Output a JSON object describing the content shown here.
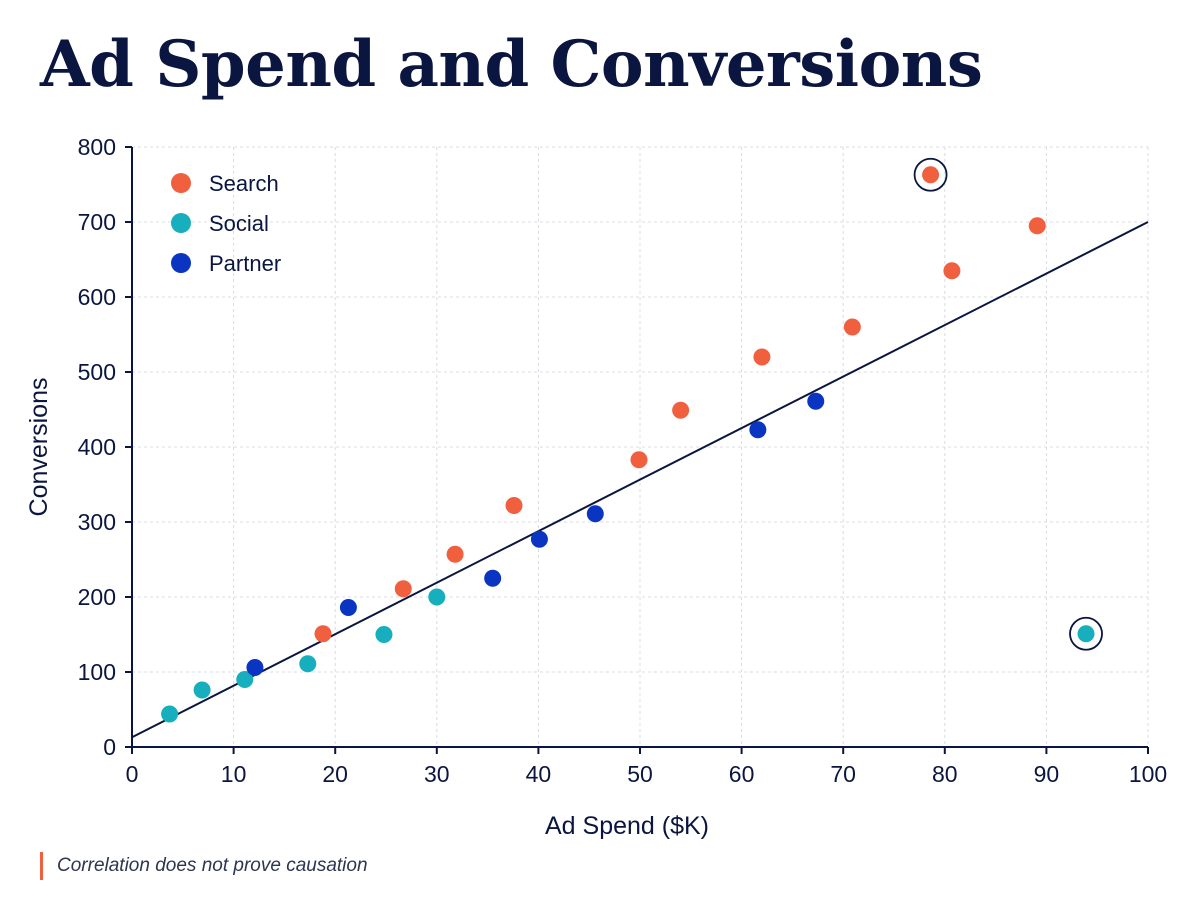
{
  "title": "Ad Spend and Conversions",
  "note": "Correlation does not prove causation",
  "colors": {
    "title": "#0b1640",
    "axis": "#0b1640",
    "trend": "#0b1640",
    "accent": "#f0603f"
  },
  "chart_data": {
    "type": "scatter",
    "xlabel": "Ad Spend ($K)",
    "ylabel": "Conversions",
    "xlim": [
      0,
      100
    ],
    "ylim": [
      0,
      800
    ],
    "xticks": [
      0,
      10,
      20,
      30,
      40,
      50,
      60,
      70,
      80,
      90,
      100
    ],
    "yticks": [
      0,
      100,
      200,
      300,
      400,
      500,
      600,
      700,
      800
    ],
    "grid": true,
    "legend_position": "top-left",
    "trendline": {
      "from": [
        0,
        13
      ],
      "to": [
        100,
        700
      ]
    },
    "series": [
      {
        "name": "Search",
        "color": "#f0603f",
        "points": [
          {
            "x": 18.8,
            "y": 151
          },
          {
            "x": 26.7,
            "y": 211
          },
          {
            "x": 31.8,
            "y": 257
          },
          {
            "x": 37.6,
            "y": 322
          },
          {
            "x": 49.9,
            "y": 383
          },
          {
            "x": 54.0,
            "y": 449
          },
          {
            "x": 62.0,
            "y": 520
          },
          {
            "x": 70.9,
            "y": 560
          },
          {
            "x": 78.6,
            "y": 763,
            "highlighted": true
          },
          {
            "x": 80.7,
            "y": 635
          },
          {
            "x": 89.1,
            "y": 695
          }
        ]
      },
      {
        "name": "Social",
        "color": "#17aebd",
        "points": [
          {
            "x": 3.7,
            "y": 44
          },
          {
            "x": 6.9,
            "y": 76
          },
          {
            "x": 11.1,
            "y": 90
          },
          {
            "x": 17.3,
            "y": 111
          },
          {
            "x": 24.8,
            "y": 150
          },
          {
            "x": 30.0,
            "y": 200
          },
          {
            "x": 93.9,
            "y": 151,
            "highlighted": true
          }
        ]
      },
      {
        "name": "Partner",
        "color": "#0a35c2",
        "points": [
          {
            "x": 12.1,
            "y": 106
          },
          {
            "x": 21.3,
            "y": 186
          },
          {
            "x": 35.5,
            "y": 225
          },
          {
            "x": 40.1,
            "y": 277
          },
          {
            "x": 45.6,
            "y": 311
          },
          {
            "x": 61.6,
            "y": 423
          },
          {
            "x": 67.3,
            "y": 461
          }
        ]
      }
    ]
  }
}
